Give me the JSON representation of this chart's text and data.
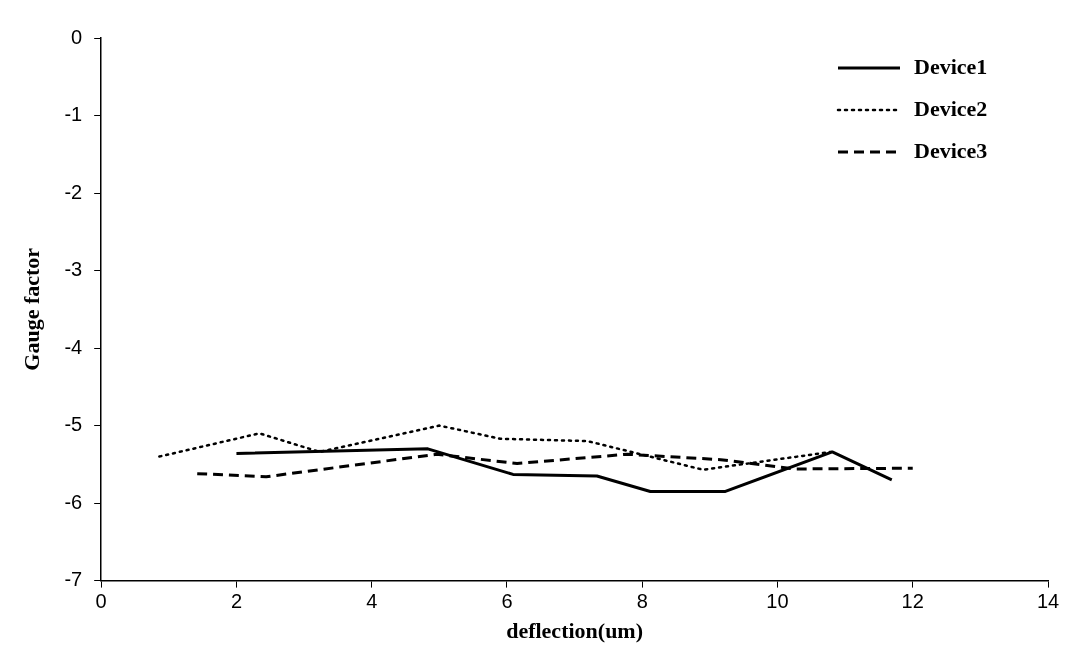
{
  "chart_data": {
    "type": "line",
    "xlabel": "deflection(um)",
    "ylabel": "Gauge factor",
    "xlim": [
      0,
      14
    ],
    "xticks": [
      0,
      2,
      4,
      6,
      8,
      10,
      12,
      14
    ],
    "ylim": [
      -7,
      0
    ],
    "yticks": [
      -7,
      -6,
      -5,
      -4,
      -3,
      -2,
      -1,
      0
    ],
    "grid": false,
    "legend": "top right",
    "marker": "none",
    "series": [
      {
        "name": "Device1",
        "color": "#000000",
        "line_style": "solid",
        "x": [
          2.0,
          4.83,
          6.09,
          7.33,
          8.12,
          9.23,
          10.81,
          11.69
        ],
        "values": [
          -5.36,
          -5.3,
          -5.63,
          -5.65,
          -5.85,
          -5.85,
          -5.34,
          -5.7
        ]
      },
      {
        "name": "Device2",
        "color": "#000000",
        "line_style": "dotted",
        "x": [
          0.86,
          2.34,
          3.23,
          5.0,
          5.9,
          7.19,
          8.9,
          10.79
        ],
        "values": [
          -5.4,
          -5.1,
          -5.34,
          -5.0,
          -5.17,
          -5.2,
          -5.57,
          -5.34
        ]
      },
      {
        "name": "Device3",
        "color": "#000000",
        "line_style": "dashed",
        "x": [
          1.42,
          2.44,
          4.96,
          6.15,
          7.78,
          9.16,
          10.24,
          12.0
        ],
        "values": [
          -5.62,
          -5.66,
          -5.37,
          -5.49,
          -5.37,
          -5.44,
          -5.56,
          -5.55
        ]
      }
    ]
  }
}
